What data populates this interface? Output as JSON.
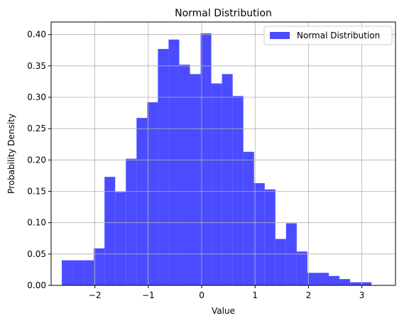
{
  "chart_data": {
    "type": "bar",
    "title": "Normal Distribution",
    "xlabel": "Value",
    "ylabel": "Probability Density",
    "xlim": [
      -2.82,
      3.63
    ],
    "ylim": [
      0,
      0.42
    ],
    "xticks": [
      -2,
      -1,
      0,
      1,
      2,
      3
    ],
    "xtick_labels": [
      "−2",
      "−1",
      "0",
      "1",
      "2",
      "3"
    ],
    "yticks": [
      0.0,
      0.05,
      0.1,
      0.15,
      0.2,
      0.25,
      0.3,
      0.35,
      0.4
    ],
    "ytick_labels": [
      "0.00",
      "0.05",
      "0.10",
      "0.15",
      "0.20",
      "0.25",
      "0.30",
      "0.35",
      "0.40"
    ],
    "grid": true,
    "legend": {
      "position": "top-right",
      "entries": [
        "Normal Distribution"
      ]
    },
    "color": "#4b4bff",
    "series": [
      {
        "name": "Normal Distribution",
        "bin_edges": [
          -2.62,
          -2.42,
          -2.22,
          -2.02,
          -1.82,
          -1.62,
          -1.42,
          -1.22,
          -1.02,
          -0.82,
          -0.62,
          -0.42,
          -0.22,
          -0.02,
          0.18,
          0.38,
          0.58,
          0.78,
          0.98,
          1.18,
          1.38,
          1.58,
          1.78,
          1.98,
          2.18,
          2.38,
          2.58,
          2.78,
          2.98,
          3.18,
          3.38
        ],
        "values": [
          0.04,
          0.04,
          0.04,
          0.059,
          0.173,
          0.149,
          0.202,
          0.267,
          0.292,
          0.377,
          0.392,
          0.352,
          0.337,
          0.402,
          0.322,
          0.337,
          0.302,
          0.213,
          0.163,
          0.153,
          0.074,
          0.099,
          0.054,
          0.02,
          0.02,
          0.015,
          0.01,
          0.005,
          0.005,
          0.0
        ]
      }
    ]
  }
}
